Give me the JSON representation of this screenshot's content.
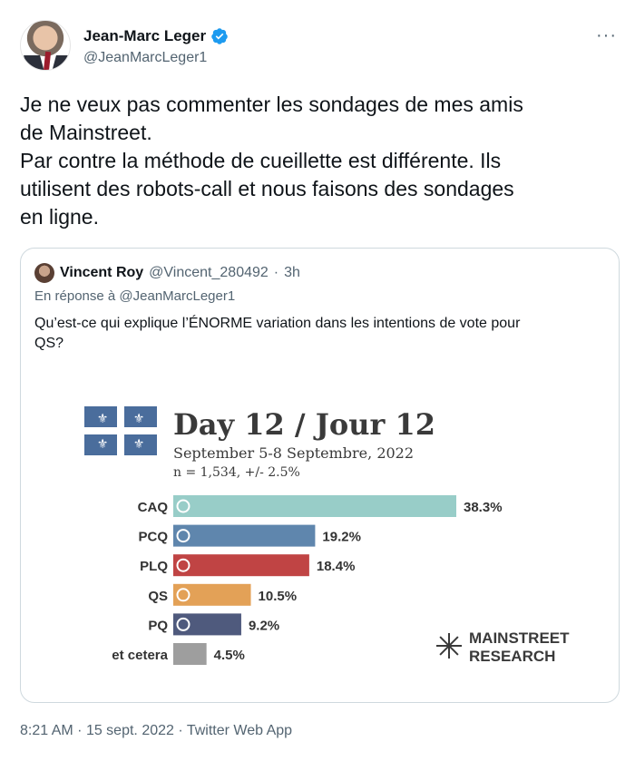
{
  "tweet": {
    "display_name": "Jean-Marc Leger",
    "handle": "@JeanMarcLeger1",
    "text_lines": [
      "Je ne veux pas commenter les sondages de mes amis",
      "de Mainstreet.",
      "Par contre la méthode de cueillette est différente. Ils",
      "utilisent des robots-call et nous faisons des sondages",
      "en ligne."
    ],
    "more_label": "···",
    "timestamp": "8:21 AM",
    "date": "15 sept. 2022",
    "separator": "·",
    "source_app": "Twitter Web App"
  },
  "quote": {
    "display_name": "Vincent Roy",
    "handle": "@Vincent_280492",
    "separator": "·",
    "time_ago": "3h",
    "reply_prefix": "En réponse à",
    "reply_to": "@JeanMarcLeger1",
    "text_lines": [
      "Qu’est-ce qui explique l’ÉNORME variation dans les intentions de vote pour",
      "QS?"
    ]
  },
  "chart_data": {
    "type": "bar",
    "title": "Day 12 / Jour 12",
    "subtitle": "September 5-8 Septembre, 2022",
    "sample": "n = 1,534, +/- 2.5%",
    "categories": [
      "CAQ",
      "PCQ",
      "PLQ",
      "QS",
      "PQ",
      "et cetera"
    ],
    "values": [
      38.3,
      19.2,
      18.4,
      10.5,
      9.2,
      4.5
    ],
    "value_labels": [
      "38.3%",
      "19.2%",
      "18.4%",
      "10.5%",
      "9.2%",
      "4.5%"
    ],
    "colors": [
      "#98cdc8",
      "#5f86ad",
      "#c04444",
      "#e3a157",
      "#4f5a7d",
      "#9e9e9e"
    ],
    "logo_line1": "MAINSTREET",
    "logo_line2": "RESEARCH",
    "flag_color": "#4a6d9c"
  }
}
